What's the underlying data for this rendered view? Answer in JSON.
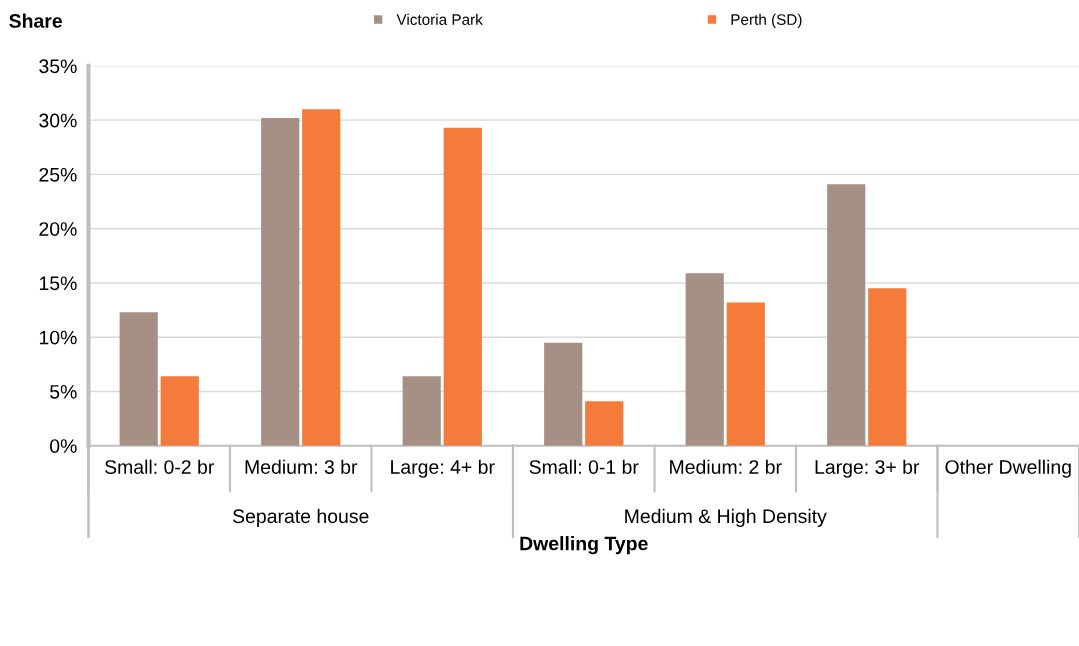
{
  "chart_data": {
    "type": "bar",
    "ylabel": "Share",
    "xlabel": "Dwelling Type",
    "categories": [
      "Small: 0-2 br",
      "Medium: 3 br",
      "Large: 4+ br",
      "Small: 0-1 br",
      "Medium: 2 br",
      "Large: 3+ br",
      "Other Dwelling"
    ],
    "series": [
      {
        "name": "Victoria Park",
        "color": "#a69085",
        "values": [
          12.3,
          30.2,
          6.4,
          9.5,
          15.9,
          24.1,
          0
        ]
      },
      {
        "name": "Perth (SD)",
        "color": "#f47b3a",
        "values": [
          6.4,
          31.0,
          29.3,
          4.1,
          13.2,
          14.5,
          0
        ]
      }
    ],
    "annotations": [
      "Separate house",
      "Medium & High Density"
    ],
    "ylim": [
      0,
      35
    ],
    "yticks": [
      {
        "value": 0,
        "label": "0%"
      },
      {
        "value": 5,
        "label": "5%"
      },
      {
        "value": 10,
        "label": "10%"
      },
      {
        "value": 15,
        "label": "15%"
      },
      {
        "value": 20,
        "label": "20%"
      },
      {
        "value": 25,
        "label": "25%"
      },
      {
        "value": 30,
        "label": "30%"
      },
      {
        "value": 35,
        "label": "35%"
      }
    ],
    "grid": "y",
    "legend": "top"
  }
}
